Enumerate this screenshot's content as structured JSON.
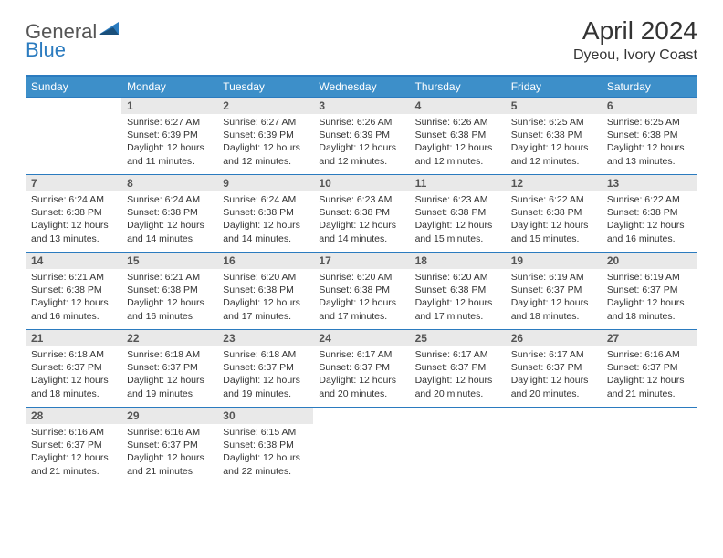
{
  "brand": {
    "general": "General",
    "blue": "Blue"
  },
  "title": "April 2024",
  "location": "Dyeou, Ivory Coast",
  "colors": {
    "header_bg": "#3d8fc9",
    "border": "#2b7bbf",
    "daynum_bg": "#e9e9e9",
    "text": "#333333"
  },
  "weekdays": [
    "Sunday",
    "Monday",
    "Tuesday",
    "Wednesday",
    "Thursday",
    "Friday",
    "Saturday"
  ],
  "weeks": [
    [
      null,
      {
        "n": "1",
        "sr": "6:27 AM",
        "ss": "6:39 PM",
        "dl": "12 hours and 11 minutes."
      },
      {
        "n": "2",
        "sr": "6:27 AM",
        "ss": "6:39 PM",
        "dl": "12 hours and 12 minutes."
      },
      {
        "n": "3",
        "sr": "6:26 AM",
        "ss": "6:39 PM",
        "dl": "12 hours and 12 minutes."
      },
      {
        "n": "4",
        "sr": "6:26 AM",
        "ss": "6:38 PM",
        "dl": "12 hours and 12 minutes."
      },
      {
        "n": "5",
        "sr": "6:25 AM",
        "ss": "6:38 PM",
        "dl": "12 hours and 12 minutes."
      },
      {
        "n": "6",
        "sr": "6:25 AM",
        "ss": "6:38 PM",
        "dl": "12 hours and 13 minutes."
      }
    ],
    [
      {
        "n": "7",
        "sr": "6:24 AM",
        "ss": "6:38 PM",
        "dl": "12 hours and 13 minutes."
      },
      {
        "n": "8",
        "sr": "6:24 AM",
        "ss": "6:38 PM",
        "dl": "12 hours and 14 minutes."
      },
      {
        "n": "9",
        "sr": "6:24 AM",
        "ss": "6:38 PM",
        "dl": "12 hours and 14 minutes."
      },
      {
        "n": "10",
        "sr": "6:23 AM",
        "ss": "6:38 PM",
        "dl": "12 hours and 14 minutes."
      },
      {
        "n": "11",
        "sr": "6:23 AM",
        "ss": "6:38 PM",
        "dl": "12 hours and 15 minutes."
      },
      {
        "n": "12",
        "sr": "6:22 AM",
        "ss": "6:38 PM",
        "dl": "12 hours and 15 minutes."
      },
      {
        "n": "13",
        "sr": "6:22 AM",
        "ss": "6:38 PM",
        "dl": "12 hours and 16 minutes."
      }
    ],
    [
      {
        "n": "14",
        "sr": "6:21 AM",
        "ss": "6:38 PM",
        "dl": "12 hours and 16 minutes."
      },
      {
        "n": "15",
        "sr": "6:21 AM",
        "ss": "6:38 PM",
        "dl": "12 hours and 16 minutes."
      },
      {
        "n": "16",
        "sr": "6:20 AM",
        "ss": "6:38 PM",
        "dl": "12 hours and 17 minutes."
      },
      {
        "n": "17",
        "sr": "6:20 AM",
        "ss": "6:38 PM",
        "dl": "12 hours and 17 minutes."
      },
      {
        "n": "18",
        "sr": "6:20 AM",
        "ss": "6:38 PM",
        "dl": "12 hours and 17 minutes."
      },
      {
        "n": "19",
        "sr": "6:19 AM",
        "ss": "6:37 PM",
        "dl": "12 hours and 18 minutes."
      },
      {
        "n": "20",
        "sr": "6:19 AM",
        "ss": "6:37 PM",
        "dl": "12 hours and 18 minutes."
      }
    ],
    [
      {
        "n": "21",
        "sr": "6:18 AM",
        "ss": "6:37 PM",
        "dl": "12 hours and 18 minutes."
      },
      {
        "n": "22",
        "sr": "6:18 AM",
        "ss": "6:37 PM",
        "dl": "12 hours and 19 minutes."
      },
      {
        "n": "23",
        "sr": "6:18 AM",
        "ss": "6:37 PM",
        "dl": "12 hours and 19 minutes."
      },
      {
        "n": "24",
        "sr": "6:17 AM",
        "ss": "6:37 PM",
        "dl": "12 hours and 20 minutes."
      },
      {
        "n": "25",
        "sr": "6:17 AM",
        "ss": "6:37 PM",
        "dl": "12 hours and 20 minutes."
      },
      {
        "n": "26",
        "sr": "6:17 AM",
        "ss": "6:37 PM",
        "dl": "12 hours and 20 minutes."
      },
      {
        "n": "27",
        "sr": "6:16 AM",
        "ss": "6:37 PM",
        "dl": "12 hours and 21 minutes."
      }
    ],
    [
      {
        "n": "28",
        "sr": "6:16 AM",
        "ss": "6:37 PM",
        "dl": "12 hours and 21 minutes."
      },
      {
        "n": "29",
        "sr": "6:16 AM",
        "ss": "6:37 PM",
        "dl": "12 hours and 21 minutes."
      },
      {
        "n": "30",
        "sr": "6:15 AM",
        "ss": "6:38 PM",
        "dl": "12 hours and 22 minutes."
      },
      null,
      null,
      null,
      null
    ]
  ],
  "labels": {
    "sunrise": "Sunrise:",
    "sunset": "Sunset:",
    "daylight": "Daylight:"
  }
}
